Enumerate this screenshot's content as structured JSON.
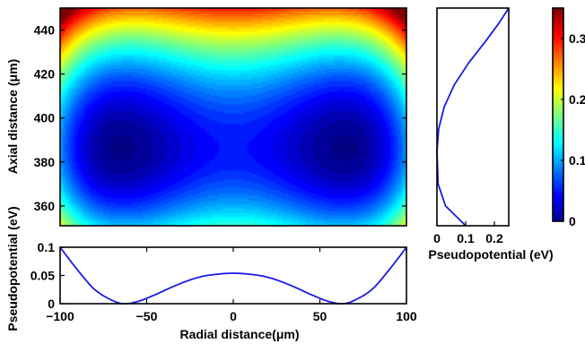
{
  "figure": {
    "colors": {
      "curve": "#1a1ae6",
      "axis": "#000000"
    },
    "colormap": "jet"
  },
  "chart_data": [
    {
      "type": "heatmap",
      "title": "",
      "xlabel": "",
      "ylabel": "Axial distance (μm)",
      "xlim": [
        -100,
        100
      ],
      "ylim": [
        351,
        450
      ],
      "y_ticks": [
        "360",
        "380",
        "400",
        "420",
        "440"
      ],
      "x_ticks": [],
      "minima": [
        {
          "x": -62,
          "y": 386
        },
        {
          "x": 62,
          "y": 386
        }
      ],
      "saddle": {
        "x": 0,
        "y": 392
      },
      "value_range": [
        0,
        0.35
      ],
      "colorbar": {
        "ticks": [
          "0",
          "0.1",
          "0.2",
          "0.3"
        ],
        "range": [
          0,
          0.35
        ]
      }
    },
    {
      "type": "line",
      "xlabel": "Pseudopotential (eV)",
      "ylabel": "",
      "xlim": [
        0,
        0.25
      ],
      "ylim": [
        351,
        450
      ],
      "x_ticks": [
        "0",
        "0.1",
        "0.2"
      ],
      "series": [
        {
          "x": [
            0.1,
            0.03,
            0.004,
            0.0,
            0.006,
            0.025,
            0.06,
            0.11,
            0.17,
            0.215,
            0.25
          ],
          "y": [
            351,
            360,
            370,
            385,
            395,
            405,
            415,
            425,
            435,
            443,
            450
          ]
        }
      ]
    },
    {
      "type": "line",
      "xlabel": "Radial distance(μm)",
      "ylabel": "Pseudopotential (eV)",
      "xlim": [
        -100,
        100
      ],
      "ylim": [
        0,
        0.1
      ],
      "x_ticks": [
        "−100",
        "−50",
        "0",
        "50",
        "100"
      ],
      "y_ticks": [
        "0",
        "0.05",
        "0.1"
      ],
      "series": [
        {
          "x": [
            -100,
            -90,
            -80,
            -70,
            -63,
            -55,
            -45,
            -35,
            -25,
            -15,
            0,
            15,
            25,
            35,
            45,
            55,
            63,
            70,
            80,
            90,
            100
          ],
          "y": [
            0.1,
            0.06,
            0.025,
            0.006,
            0.0,
            0.004,
            0.016,
            0.03,
            0.042,
            0.05,
            0.054,
            0.05,
            0.042,
            0.03,
            0.016,
            0.004,
            0.0,
            0.006,
            0.025,
            0.06,
            0.1
          ]
        }
      ]
    }
  ]
}
